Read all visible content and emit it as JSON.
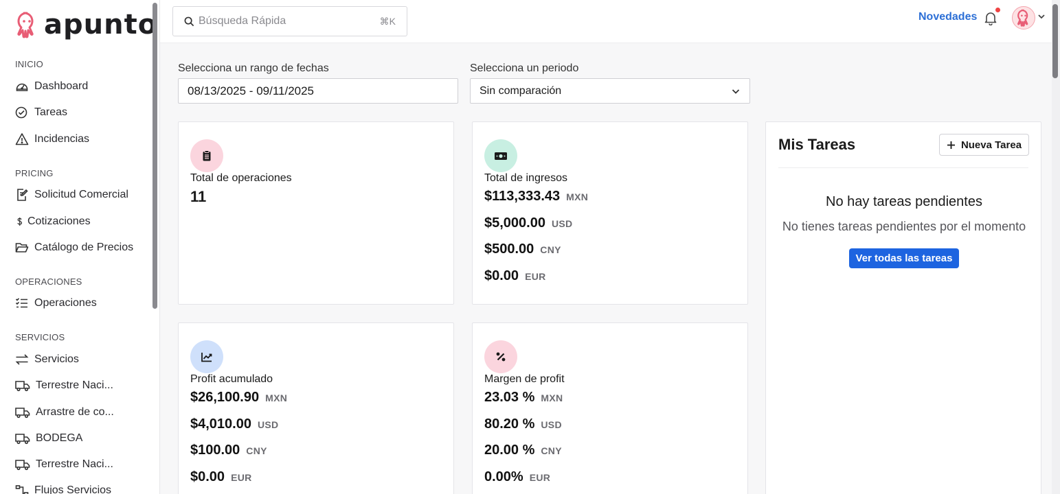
{
  "brand": {
    "name": "apunto"
  },
  "sidebar": {
    "sections": [
      {
        "title": "INICIO",
        "items": [
          {
            "label": "Dashboard",
            "icon": "gauge-icon"
          },
          {
            "label": "Tareas",
            "icon": "check-circle-icon"
          },
          {
            "label": "Incidencias",
            "icon": "warning-icon"
          }
        ]
      },
      {
        "title": "PRICING",
        "items": [
          {
            "label": "Solicitud Comercial",
            "icon": "edit-document-icon"
          },
          {
            "label": "Cotizaciones",
            "icon": "dollar-icon"
          },
          {
            "label": "Catálogo de Precios",
            "icon": "folder-open-icon"
          }
        ]
      },
      {
        "title": "OPERACIONES",
        "items": [
          {
            "label": "Operaciones",
            "icon": "list-check-icon"
          }
        ]
      },
      {
        "title": "SERVICIOS",
        "items": [
          {
            "label": "Servicios",
            "icon": "arrows-exchange-icon"
          },
          {
            "label": "Terrestre Naci...",
            "icon": "truck-icon"
          },
          {
            "label": "Arrastre de co...",
            "icon": "truck-icon"
          },
          {
            "label": "BODEGA",
            "icon": "truck-icon"
          },
          {
            "label": "Terrestre Naci...",
            "icon": "truck-icon"
          },
          {
            "label": "Flujos Servicios",
            "icon": "flow-icon"
          }
        ]
      }
    ]
  },
  "topbar": {
    "search_placeholder": "Búsqueda Rápida",
    "shortcut": "⌘K",
    "novedades": "Novedades"
  },
  "filters": {
    "date_label": "Selecciona un rango de fechas",
    "date_value": "08/13/2025 - 09/11/2025",
    "period_label": "Selecciona un periodo",
    "period_value": "Sin comparación"
  },
  "cards": {
    "operations": {
      "title": "Total de operaciones",
      "value": "11"
    },
    "income": {
      "title": "Total de ingresos",
      "amounts": [
        {
          "value": "$113,333.43",
          "currency": "MXN"
        },
        {
          "value": "$5,000.00",
          "currency": "USD"
        },
        {
          "value": "$500.00",
          "currency": "CNY"
        },
        {
          "value": "$0.00",
          "currency": "EUR"
        }
      ]
    },
    "profit": {
      "title": "Profit acumulado",
      "amounts": [
        {
          "value": "$26,100.90",
          "currency": "MXN"
        },
        {
          "value": "$4,010.00",
          "currency": "USD"
        },
        {
          "value": "$100.00",
          "currency": "CNY"
        },
        {
          "value": "$0.00",
          "currency": "EUR"
        }
      ]
    },
    "margin": {
      "title": "Margen de profit",
      "amounts": [
        {
          "value": "23.03 %",
          "currency": "MXN"
        },
        {
          "value": "80.20 %",
          "currency": "USD"
        },
        {
          "value": "20.00 %",
          "currency": "CNY"
        },
        {
          "value": "0.00%",
          "currency": "EUR"
        }
      ]
    }
  },
  "tasks": {
    "title": "Mis Tareas",
    "new_button": "Nueva Tarea",
    "empty_title": "No hay tareas pendientes",
    "empty_sub": "No tienes tareas pendientes por el momento",
    "view_all": "Ver todas las tareas"
  },
  "colors": {
    "accent": "#1d64e0",
    "brand": "#e85d75",
    "ops_icon_bg": "#fbd5de",
    "income_icon_bg": "#c8efe2",
    "profit_icon_bg": "#cfe0fb",
    "margin_icon_bg": "#fbd5de"
  }
}
